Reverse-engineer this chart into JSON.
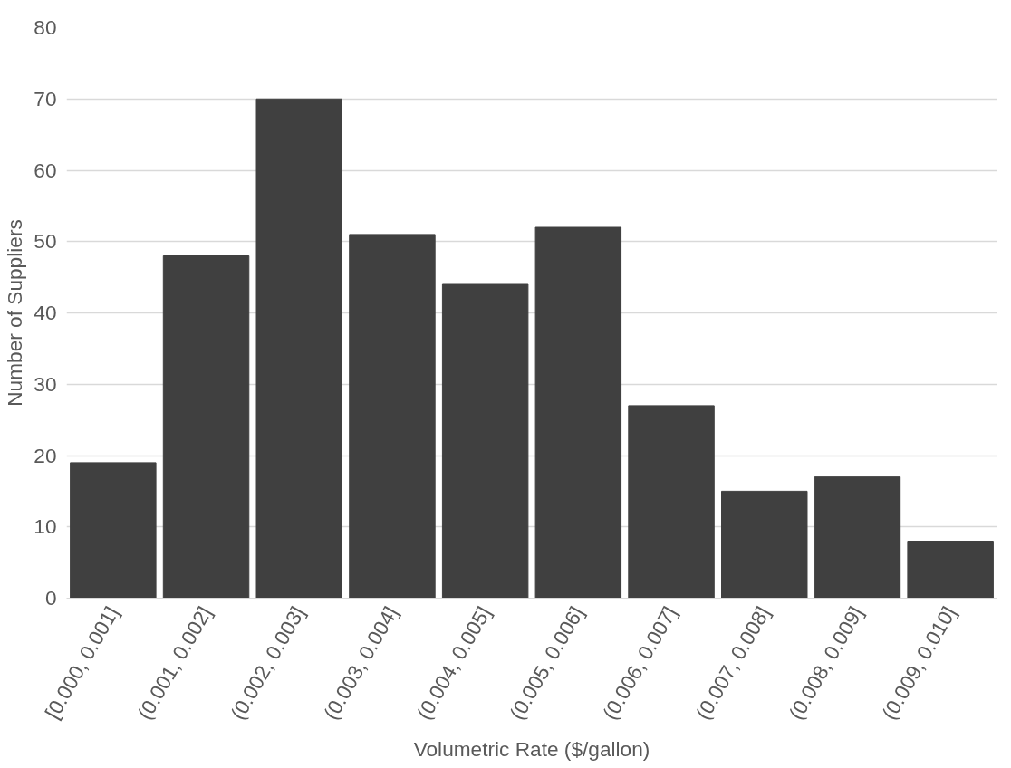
{
  "chart_data": {
    "type": "bar",
    "categories": [
      "[0.000, 0.001]",
      "(0.001, 0.002]",
      "(0.002, 0.003]",
      "(0.003, 0.004]",
      "(0.004, 0.005]",
      "(0.005, 0.006]",
      "(0.006, 0.007]",
      "(0.007, 0.008]",
      "(0.008, 0.009]",
      "(0.009, 0.010]"
    ],
    "values": [
      19,
      48,
      70,
      51,
      44,
      52,
      27,
      15,
      17,
      8
    ],
    "color": "#404040",
    "xlabel": "Volumetric Rate ($/gallon)",
    "ylabel": "Number of Suppliers",
    "ylim": [
      0,
      80
    ],
    "yticks": [
      0,
      10,
      20,
      30,
      40,
      50,
      60,
      70,
      80
    ],
    "grid": "y"
  }
}
